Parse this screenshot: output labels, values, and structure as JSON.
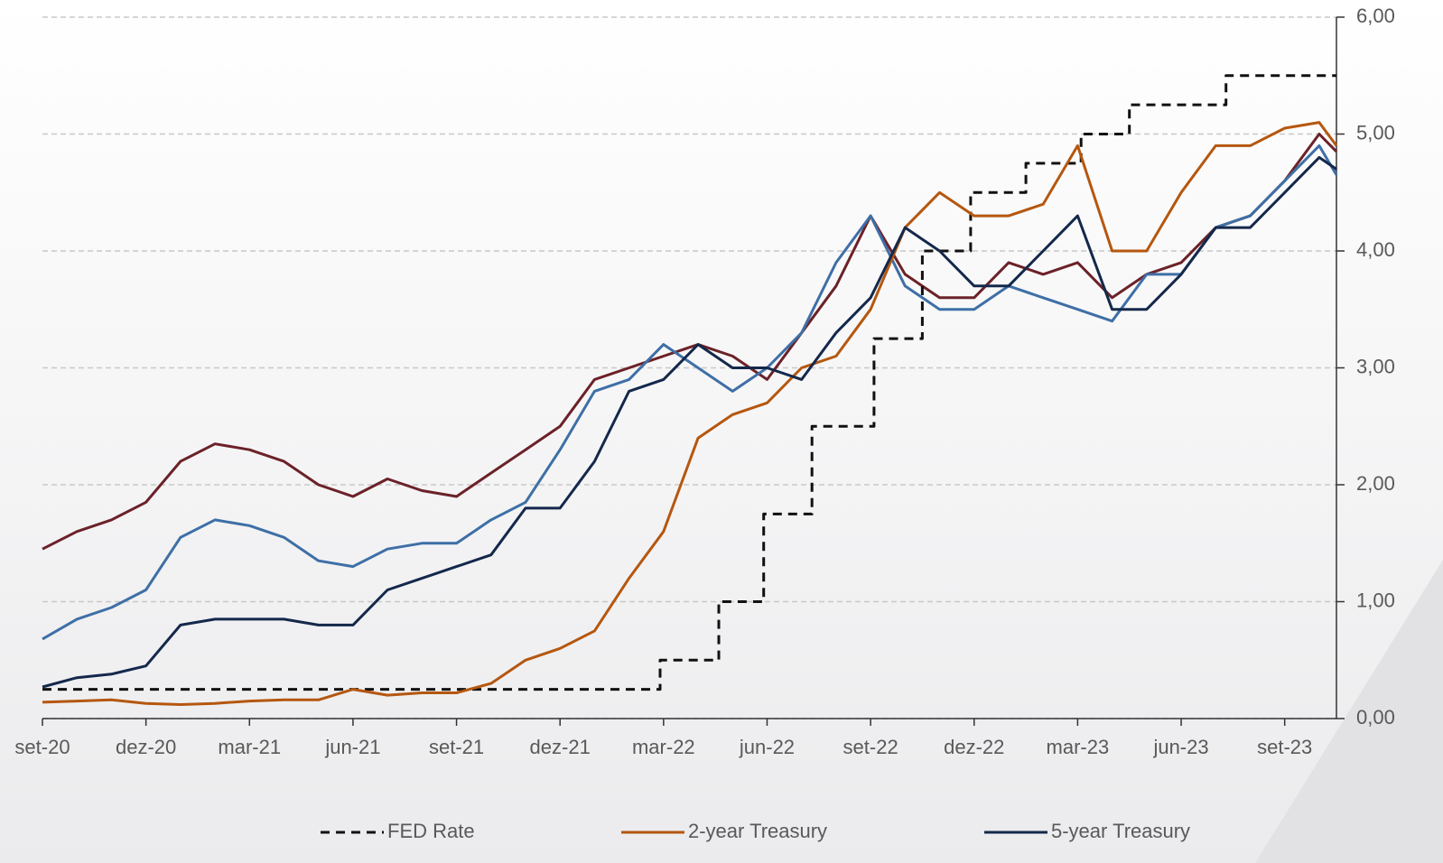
{
  "chart_data": {
    "type": "line",
    "x": [
      0,
      1,
      2,
      3,
      4,
      5,
      6,
      7,
      8,
      9,
      10,
      11,
      12,
      13,
      14,
      15,
      16,
      17,
      18,
      19,
      20,
      21,
      22,
      23,
      24,
      25,
      26,
      27,
      28,
      29,
      30,
      31,
      32,
      33,
      34,
      35,
      36,
      37,
      37.5
    ],
    "xlim": [
      0,
      37.5
    ],
    "xticks": [
      {
        "value": 0,
        "label": "set-20"
      },
      {
        "value": 3,
        "label": "dez-20"
      },
      {
        "value": 6,
        "label": "mar-21"
      },
      {
        "value": 9,
        "label": "jun-21"
      },
      {
        "value": 12,
        "label": "set-21"
      },
      {
        "value": 15,
        "label": "dez-21"
      },
      {
        "value": 18,
        "label": "mar-22"
      },
      {
        "value": 21,
        "label": "jun-22"
      },
      {
        "value": 24,
        "label": "set-22"
      },
      {
        "value": 27,
        "label": "dez-22"
      },
      {
        "value": 30,
        "label": "mar-23"
      },
      {
        "value": 33,
        "label": "jun-23"
      },
      {
        "value": 36,
        "label": "set-23"
      }
    ],
    "ylim": [
      0,
      6
    ],
    "yticks": [
      {
        "value": 0,
        "label": "0,00"
      },
      {
        "value": 1,
        "label": "1,00"
      },
      {
        "value": 2,
        "label": "2,00"
      },
      {
        "value": 3,
        "label": "3,00"
      },
      {
        "value": 4,
        "label": "4,00"
      },
      {
        "value": 5,
        "label": "5,00"
      },
      {
        "value": 6,
        "label": "6,00"
      }
    ],
    "grid": true,
    "legend": "bottom",
    "series": [
      {
        "color": "#6b2228",
        "values": [
          1.45,
          1.6,
          1.7,
          1.85,
          2.2,
          2.35,
          2.3,
          2.2,
          2.0,
          1.9,
          2.05,
          1.95,
          1.9,
          2.1,
          2.3,
          2.5,
          2.9,
          3.0,
          3.1,
          3.2,
          3.1,
          2.9,
          3.3,
          3.7,
          4.3,
          3.8,
          3.6,
          3.6,
          3.9,
          3.8,
          3.9,
          3.6,
          3.8,
          3.9,
          4.2,
          4.3,
          4.6,
          5.0,
          4.85
        ]
      },
      {
        "color": "#3e6fa6",
        "values": [
          0.68,
          0.85,
          0.95,
          1.1,
          1.55,
          1.7,
          1.65,
          1.55,
          1.35,
          1.3,
          1.45,
          1.5,
          1.5,
          1.7,
          1.85,
          2.3,
          2.8,
          2.9,
          3.2,
          3.0,
          2.8,
          3.0,
          3.3,
          3.9,
          4.3,
          3.7,
          3.5,
          3.5,
          3.7,
          3.6,
          3.5,
          3.4,
          3.8,
          3.8,
          4.2,
          4.3,
          4.6,
          4.9,
          4.65
        ]
      },
      {
        "name": "FED Rate",
        "color": "#111111",
        "dashed": true,
        "x": [
          0,
          17.9,
          17.9,
          19.6,
          19.6,
          20.9,
          20.9,
          22.3,
          22.3,
          24.1,
          24.1,
          25.5,
          25.5,
          26.9,
          26.9,
          28.5,
          28.5,
          30.1,
          30.1,
          31.5,
          31.5,
          34.3,
          34.3,
          37.5
        ],
        "values": [
          0.25,
          0.25,
          0.5,
          0.5,
          1,
          1,
          1.75,
          1.75,
          2.5,
          2.5,
          3.25,
          3.25,
          4,
          4,
          4.5,
          4.5,
          4.75,
          4.75,
          5,
          5,
          5.25,
          5.25,
          5.5,
          5.5
        ]
      },
      {
        "name": "2-year Treasury",
        "color": "#b5570f",
        "values": [
          0.14,
          0.15,
          0.16,
          0.13,
          0.12,
          0.13,
          0.15,
          0.16,
          0.16,
          0.25,
          0.2,
          0.22,
          0.22,
          0.3,
          0.5,
          0.6,
          0.75,
          1.2,
          1.6,
          2.4,
          2.6,
          2.7,
          3.0,
          3.1,
          3.5,
          4.2,
          4.5,
          4.3,
          4.3,
          4.4,
          4.9,
          4.0,
          4.0,
          4.5,
          4.9,
          4.9,
          5.05,
          5.1,
          4.9
        ]
      },
      {
        "name": "5-year Treasury",
        "color": "#14284b",
        "values": [
          0.27,
          0.35,
          0.38,
          0.45,
          0.8,
          0.85,
          0.85,
          0.85,
          0.8,
          0.8,
          1.1,
          1.2,
          1.3,
          1.4,
          1.8,
          1.8,
          2.2,
          2.8,
          2.9,
          3.2,
          3.0,
          3.0,
          2.9,
          3.3,
          3.6,
          4.2,
          4.0,
          3.7,
          3.7,
          4.0,
          4.3,
          3.5,
          3.5,
          3.8,
          4.2,
          4.2,
          4.5,
          4.8,
          4.7
        ]
      }
    ]
  }
}
